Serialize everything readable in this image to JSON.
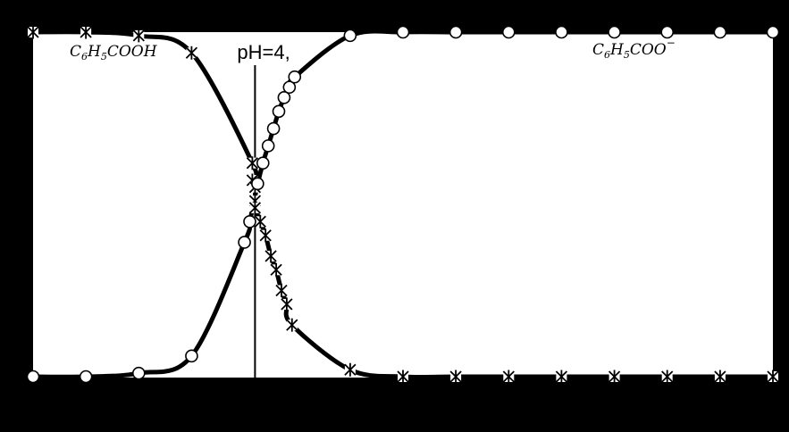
{
  "chart_data": {
    "type": "line",
    "title": "",
    "xlabel": "",
    "ylabel": "",
    "xlim": [
      0,
      14
    ],
    "ylim": [
      0,
      1
    ],
    "grid": false,
    "legend": "none",
    "colors": {
      "background": "#000000",
      "plot_area": "#ffffff",
      "lines": "#000000"
    },
    "series": [
      {
        "name": "C6H5COOH",
        "marker": "asterisk-cross",
        "x": [
          0,
          1,
          2,
          3,
          4.15,
          4.15,
          4.2,
          4.2,
          4.2,
          4.3,
          4.4,
          4.5,
          4.6,
          4.7,
          4.8,
          4.9,
          6,
          7,
          8,
          9,
          10,
          11,
          12,
          13,
          14
        ],
        "y": [
          1.0,
          1.0,
          0.99,
          0.94,
          0.62,
          0.57,
          0.55,
          0.51,
          0.49,
          0.45,
          0.41,
          0.35,
          0.31,
          0.25,
          0.21,
          0.15,
          0.02,
          0.0,
          0.0,
          0.0,
          0.0,
          0.0,
          0.0,
          0.0,
          0.0
        ]
      },
      {
        "name": "C6H5COO−",
        "marker": "open-circle",
        "x": [
          0,
          1,
          2,
          3,
          4.0,
          4.1,
          4.25,
          4.35,
          4.45,
          4.55,
          4.65,
          4.75,
          4.85,
          4.95,
          6,
          7,
          8,
          9,
          10,
          11,
          12,
          13,
          14
        ],
        "y": [
          0.0,
          0.0,
          0.01,
          0.06,
          0.39,
          0.45,
          0.56,
          0.62,
          0.67,
          0.72,
          0.77,
          0.81,
          0.84,
          0.87,
          0.99,
          1.0,
          1.0,
          1.0,
          1.0,
          1.0,
          1.0,
          1.0,
          1.0
        ]
      }
    ],
    "annotations": {
      "vline_x": 4.2,
      "vline_label": "pH=4,",
      "left_species": {
        "base": "C",
        "s1": "6",
        "m": "H",
        "s2": "5",
        "tail": "COOH"
      },
      "right_species": {
        "base": "C",
        "s1": "6",
        "m": "H",
        "s2": "5",
        "tail": "COO",
        "sup": "−"
      }
    }
  }
}
